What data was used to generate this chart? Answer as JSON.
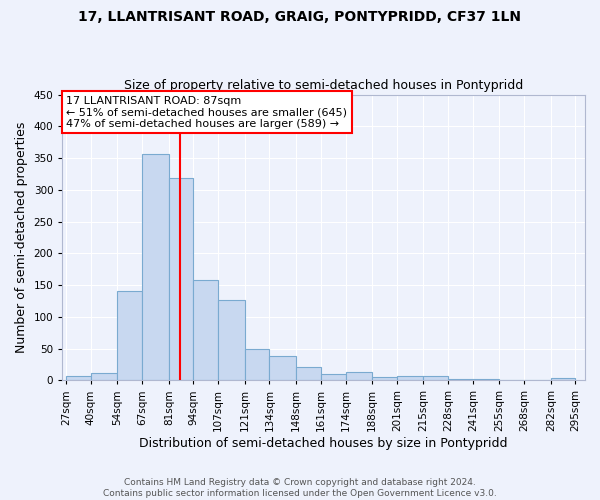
{
  "title": "17, LLANTRISANT ROAD, GRAIG, PONTYPRIDD, CF37 1LN",
  "subtitle": "Size of property relative to semi-detached houses in Pontypridd",
  "xlabel": "Distribution of semi-detached houses by size in Pontypridd",
  "ylabel": "Number of semi-detached properties",
  "bar_color": "#c8d8f0",
  "bar_edge_color": "#7aaad0",
  "background_color": "#eef2fc",
  "grid_color": "#ffffff",
  "bin_labels": [
    "27sqm",
    "40sqm",
    "54sqm",
    "67sqm",
    "81sqm",
    "94sqm",
    "107sqm",
    "121sqm",
    "134sqm",
    "148sqm",
    "161sqm",
    "174sqm",
    "188sqm",
    "201sqm",
    "215sqm",
    "228sqm",
    "241sqm",
    "255sqm",
    "268sqm",
    "282sqm",
    "295sqm"
  ],
  "bin_edges": [
    27,
    40,
    54,
    67,
    81,
    94,
    107,
    121,
    134,
    148,
    161,
    174,
    188,
    201,
    215,
    228,
    241,
    255,
    268,
    282,
    295
  ],
  "bar_heights": [
    6,
    12,
    140,
    356,
    319,
    158,
    126,
    50,
    39,
    21,
    10,
    13,
    5,
    6,
    7,
    2,
    2,
    0,
    0,
    3
  ],
  "red_line_x": 87,
  "ylim": [
    0,
    450
  ],
  "yticks": [
    0,
    50,
    100,
    150,
    200,
    250,
    300,
    350,
    400,
    450
  ],
  "annotation_title": "17 LLANTRISANT ROAD: 87sqm",
  "annotation_line1": "← 51% of semi-detached houses are smaller (645)",
  "annotation_line2": "47% of semi-detached houses are larger (589) →",
  "footer1": "Contains HM Land Registry data © Crown copyright and database right 2024.",
  "footer2": "Contains public sector information licensed under the Open Government Licence v3.0.",
  "title_fontsize": 10,
  "subtitle_fontsize": 9,
  "axis_label_fontsize": 9,
  "tick_fontsize": 7.5,
  "annotation_fontsize": 8,
  "footer_fontsize": 6.5
}
